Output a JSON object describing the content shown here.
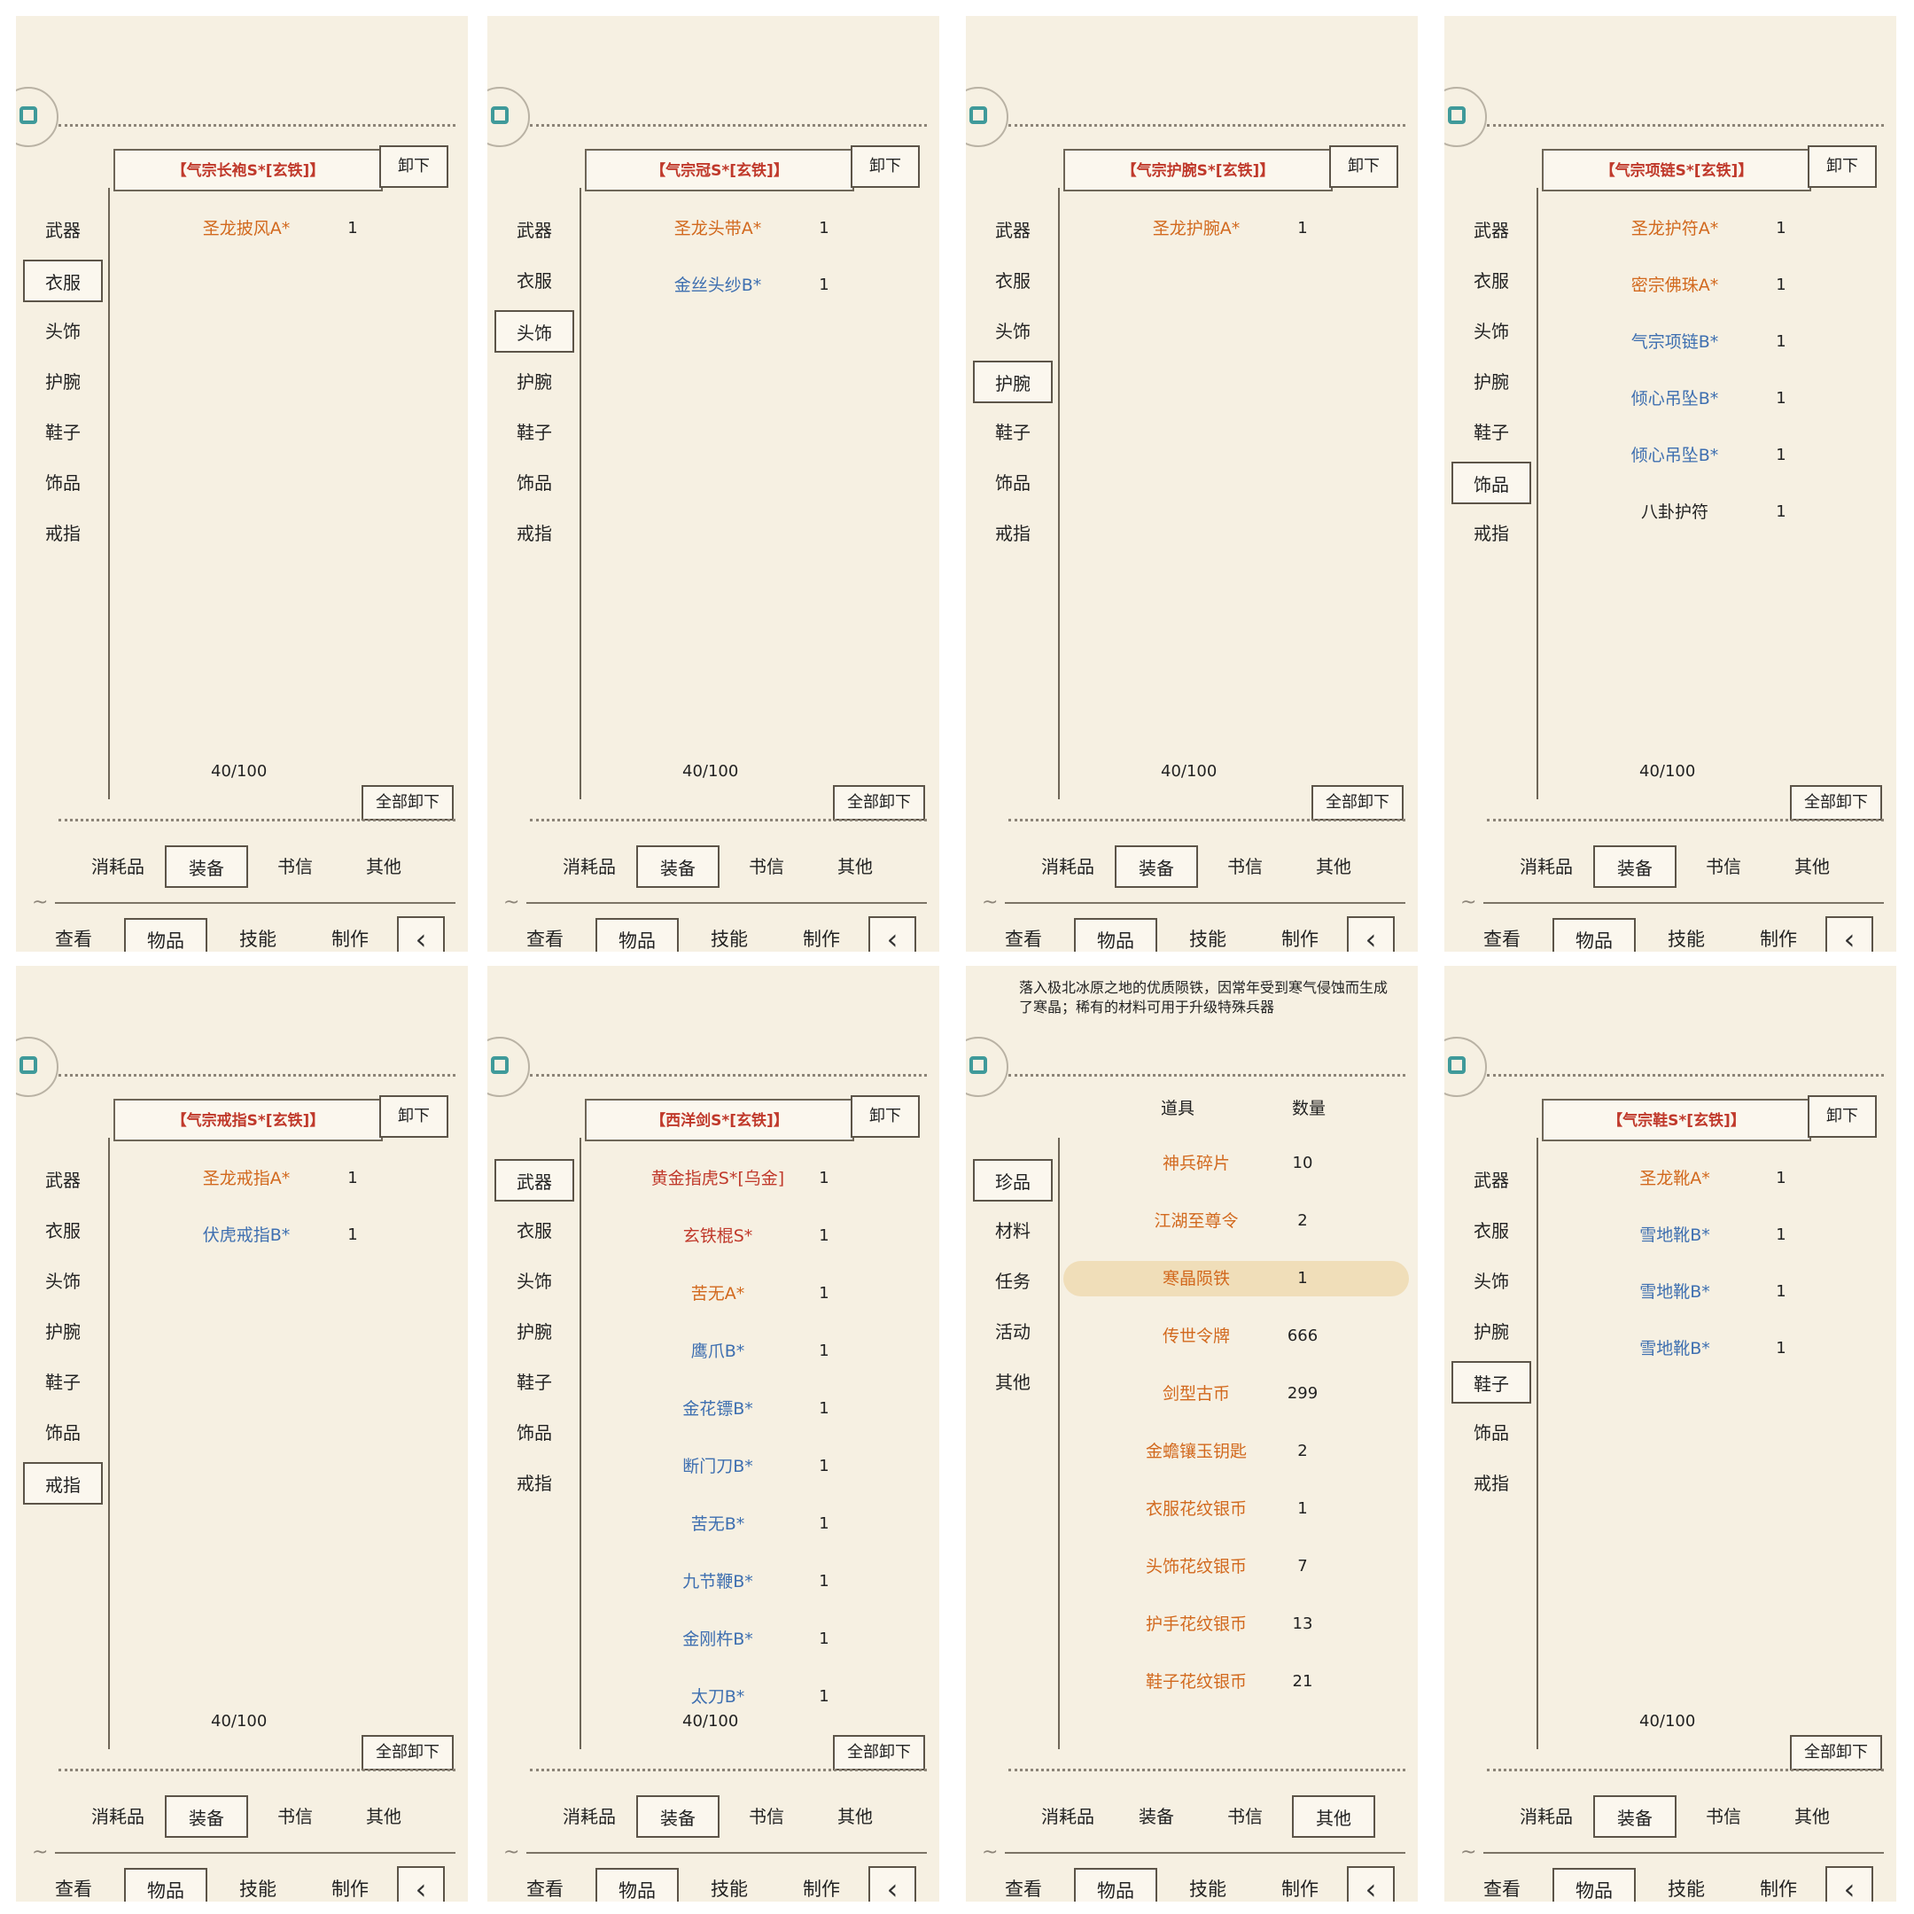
{
  "colors": {
    "orange": "#d2691e",
    "blue": "#3e6fb0",
    "red": "#c0392b",
    "black": "#222222"
  },
  "common": {
    "equip_categories": [
      "武器",
      "衣服",
      "头饰",
      "护腕",
      "鞋子",
      "饰品",
      "戒指"
    ],
    "misc_categories": [
      "珍品",
      "材料",
      "任务",
      "活动",
      "其他"
    ],
    "sub_tabs": [
      "消耗品",
      "装备",
      "书信",
      "其他"
    ],
    "main_tabs": [
      "查看",
      "物品",
      "技能",
      "制作"
    ],
    "unequip_all_a": "全部卸下",
    "unequip_all_b": "全部卸下",
    "unequip_a": "卸下",
    "capacity": "40/100",
    "back_icon": "back-arrow-icon",
    "circle_icon": "menu-orb-icon"
  },
  "panels": [
    {
      "slot": "【气宗长袍S*[玄铁]】",
      "unequip": "卸下",
      "selected_cat": 1,
      "selected_sub": 1,
      "items": [
        {
          "name": "圣龙披风A*",
          "qty": "1",
          "color": "orange"
        }
      ]
    },
    {
      "slot": "【气宗冠S*[玄铁]】",
      "unequip": "卸下",
      "selected_cat": 2,
      "selected_sub": 1,
      "items": [
        {
          "name": "圣龙头带A*",
          "qty": "1",
          "color": "orange"
        },
        {
          "name": "金丝头纱B*",
          "qty": "1",
          "color": "blue"
        }
      ]
    },
    {
      "slot": "【气宗护腕S*[玄铁]】",
      "unequip": "卸下",
      "selected_cat": 3,
      "selected_sub": 1,
      "items": [
        {
          "name": "圣龙护腕A*",
          "qty": "1",
          "color": "orange"
        }
      ]
    },
    {
      "slot": "【气宗项链S*[玄铁]】",
      "unequip": "卸下",
      "selected_cat": 5,
      "selected_sub": 1,
      "items": [
        {
          "name": "圣龙护符A*",
          "qty": "1",
          "color": "orange"
        },
        {
          "name": "密宗佛珠A*",
          "qty": "1",
          "color": "orange"
        },
        {
          "name": "气宗项链B*",
          "qty": "1",
          "color": "blue"
        },
        {
          "name": "倾心吊坠B*",
          "qty": "1",
          "color": "blue"
        },
        {
          "name": "倾心吊坠B*",
          "qty": "1",
          "color": "blue"
        },
        {
          "name": "八卦护符",
          "qty": "1",
          "color": "black"
        }
      ]
    },
    {
      "slot": "【气宗戒指S*[玄铁]】",
      "unequip": "卸下",
      "selected_cat": 6,
      "selected_sub": 1,
      "items": [
        {
          "name": "圣龙戒指A*",
          "qty": "1",
          "color": "orange"
        },
        {
          "name": "伏虎戒指B*",
          "qty": "1",
          "color": "blue"
        }
      ]
    },
    {
      "slot": "【西洋剑S*[玄铁]】",
      "unequip": "卸下",
      "selected_cat": 0,
      "selected_sub": 1,
      "items": [
        {
          "name": "黄金指虎S*[乌金]",
          "qty": "1",
          "color": "red"
        },
        {
          "name": "玄铁棍S*",
          "qty": "1",
          "color": "red"
        },
        {
          "name": "苦无A*",
          "qty": "1",
          "color": "orange"
        },
        {
          "name": "鹰爪B*",
          "qty": "1",
          "color": "blue"
        },
        {
          "name": "金花镖B*",
          "qty": "1",
          "color": "blue"
        },
        {
          "name": "断门刀B*",
          "qty": "1",
          "color": "blue"
        },
        {
          "name": "苦无B*",
          "qty": "1",
          "color": "blue"
        },
        {
          "name": "九节鞭B*",
          "qty": "1",
          "color": "blue"
        },
        {
          "name": "金刚杵B*",
          "qty": "1",
          "color": "blue"
        },
        {
          "name": "太刀B*",
          "qty": "1",
          "color": "blue"
        }
      ]
    },
    {
      "misc": true,
      "selected_cat": 0,
      "selected_sub": 3,
      "desc": "落入极北冰原之地的优质陨铁，因常年受到寒气侵蚀而生成了寒晶；稀有的材料可用于升级特殊兵器",
      "hdr_item": "道具",
      "hdr_qty": "数量",
      "items": [
        {
          "name": "神兵碎片",
          "qty": "10",
          "color": "orange"
        },
        {
          "name": "江湖至尊令",
          "qty": "2",
          "color": "orange"
        },
        {
          "name": "寒晶陨铁",
          "qty": "1",
          "color": "orange"
        },
        {
          "name": "传世令牌",
          "qty": "666",
          "color": "orange"
        },
        {
          "name": "剑型古币",
          "qty": "299",
          "color": "orange"
        },
        {
          "name": "金蟾镶玉钥匙",
          "qty": "2",
          "color": "orange"
        },
        {
          "name": "衣服花纹银币",
          "qty": "1",
          "color": "orange"
        },
        {
          "name": "头饰花纹银币",
          "qty": "7",
          "color": "orange"
        },
        {
          "name": "护手花纹银币",
          "qty": "13",
          "color": "orange"
        },
        {
          "name": "鞋子花纹银币",
          "qty": "21",
          "color": "orange"
        }
      ]
    },
    {
      "slot": "【气宗鞋S*[玄铁]】",
      "unequip": "卸下",
      "selected_cat": 4,
      "selected_sub": 1,
      "items": [
        {
          "name": "圣龙靴A*",
          "qty": "1",
          "color": "orange"
        },
        {
          "name": "雪地靴B*",
          "qty": "1",
          "color": "blue"
        },
        {
          "name": "雪地靴B*",
          "qty": "1",
          "color": "blue"
        },
        {
          "name": "雪地靴B*",
          "qty": "1",
          "color": "blue"
        }
      ]
    }
  ]
}
